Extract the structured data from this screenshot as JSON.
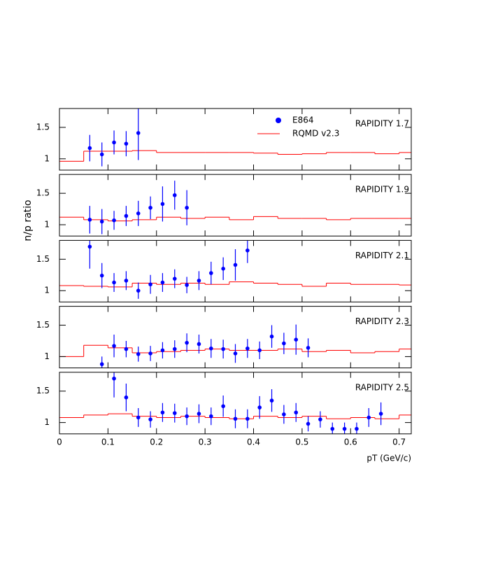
{
  "chart_data": {
    "type": "scatter",
    "xlabel": "pT (GeV/c)",
    "ylabel": "n/p ratio",
    "xlim": [
      0,
      0.725
    ],
    "xticks": [
      0,
      0.1,
      0.2,
      0.3,
      0.4,
      0.5,
      0.6,
      0.7
    ],
    "ylim": [
      0.82,
      1.8
    ],
    "yticks": [
      1,
      1.5
    ],
    "series": [
      {
        "name": "E864",
        "color": "#0000ff"
      },
      {
        "name": "RQMD v2.3",
        "color": "#ff0000"
      }
    ],
    "bins": [
      0,
      0.05,
      0.1,
      0.15,
      0.2,
      0.25,
      0.3,
      0.35,
      0.4,
      0.45,
      0.5,
      0.55,
      0.6,
      0.65,
      0.7,
      0.725
    ],
    "panels": [
      {
        "label": "RAPIDITY 1.7",
        "x": [
          0.0625,
          0.0875,
          0.1125,
          0.1375,
          0.1625
        ],
        "values": [
          1.17,
          1.07,
          1.26,
          1.24,
          1.41
        ],
        "errors": [
          0.21,
          0.19,
          0.19,
          0.2,
          0.43
        ],
        "model": [
          0.96,
          1.12,
          1.12,
          1.13,
          1.1,
          1.1,
          1.1,
          1.1,
          1.09,
          1.07,
          1.08,
          1.1,
          1.1,
          1.08,
          1.1
        ]
      },
      {
        "label": "RAPIDITY 1.9",
        "x": [
          0.0625,
          0.0875,
          0.1125,
          0.1375,
          0.1625,
          0.1875,
          0.2125,
          0.2375,
          0.2625
        ],
        "values": [
          1.08,
          1.05,
          1.07,
          1.14,
          1.18,
          1.27,
          1.33,
          1.47,
          1.27
        ],
        "errors": [
          0.22,
          0.2,
          0.15,
          0.16,
          0.2,
          0.18,
          0.28,
          0.23,
          0.28
        ],
        "model": [
          1.12,
          1.08,
          1.06,
          1.08,
          1.12,
          1.1,
          1.12,
          1.08,
          1.13,
          1.1,
          1.1,
          1.08,
          1.1,
          1.1,
          1.1
        ]
      },
      {
        "label": "RAPIDITY 2.1",
        "x": [
          0.0625,
          0.0875,
          0.1125,
          0.1375,
          0.1625,
          0.1875,
          0.2125,
          0.2375,
          0.2625,
          0.2875,
          0.3125,
          0.3375,
          0.3625,
          0.3875
        ],
        "values": [
          1.7,
          1.24,
          1.13,
          1.16,
          1.0,
          1.1,
          1.13,
          1.19,
          1.09,
          1.16,
          1.28,
          1.35,
          1.41,
          1.64
        ],
        "errors": [
          0.35,
          0.2,
          0.15,
          0.15,
          0.13,
          0.15,
          0.15,
          0.15,
          0.13,
          0.15,
          0.18,
          0.18,
          0.25,
          0.2
        ],
        "model": [
          1.08,
          1.07,
          1.06,
          1.12,
          1.1,
          1.12,
          1.1,
          1.14,
          1.12,
          1.1,
          1.07,
          1.12,
          1.1,
          1.1,
          1.09
        ]
      },
      {
        "label": "RAPIDITY 2.3",
        "x": [
          0.0875,
          0.1125,
          0.1375,
          0.1625,
          0.1875,
          0.2125,
          0.2375,
          0.2625,
          0.2875,
          0.3125,
          0.3375,
          0.3625,
          0.3875,
          0.4125,
          0.4375,
          0.4625,
          0.4875,
          0.5125
        ],
        "values": [
          0.88,
          1.17,
          1.12,
          1.04,
          1.05,
          1.1,
          1.12,
          1.22,
          1.2,
          1.13,
          1.12,
          1.05,
          1.13,
          1.1,
          1.32,
          1.21,
          1.27,
          1.14
        ],
        "errors": [
          0.12,
          0.18,
          0.13,
          0.12,
          0.12,
          0.13,
          0.14,
          0.15,
          0.15,
          0.15,
          0.15,
          0.15,
          0.15,
          0.14,
          0.18,
          0.17,
          0.24,
          0.15
        ],
        "model": [
          1.0,
          1.18,
          1.14,
          1.06,
          1.08,
          1.1,
          1.12,
          1.1,
          1.1,
          1.12,
          1.08,
          1.1,
          1.06,
          1.08,
          1.12
        ]
      },
      {
        "label": "RAPIDITY 2.5",
        "x": [
          0.1125,
          0.1375,
          0.1625,
          0.1875,
          0.2125,
          0.2375,
          0.2625,
          0.2875,
          0.3125,
          0.3375,
          0.3625,
          0.3875,
          0.4125,
          0.4375,
          0.4625,
          0.4875,
          0.5125,
          0.5375,
          0.5625,
          0.5875,
          0.6125,
          0.6375,
          0.6625
        ],
        "values": [
          1.7,
          1.4,
          1.08,
          1.05,
          1.16,
          1.15,
          1.1,
          1.14,
          1.1,
          1.26,
          1.06,
          1.06,
          1.24,
          1.35,
          1.13,
          1.16,
          0.98,
          1.05,
          0.9,
          0.9,
          0.9,
          1.08,
          1.14
        ],
        "errors": [
          0.3,
          0.22,
          0.15,
          0.13,
          0.15,
          0.15,
          0.14,
          0.15,
          0.14,
          0.17,
          0.15,
          0.15,
          0.18,
          0.18,
          0.15,
          0.15,
          0.12,
          0.13,
          0.1,
          0.1,
          0.1,
          0.15,
          0.18
        ],
        "model": [
          1.08,
          1.12,
          1.14,
          1.1,
          1.08,
          1.1,
          1.08,
          1.06,
          1.1,
          1.08,
          1.1,
          1.06,
          1.08,
          1.06,
          1.12
        ]
      }
    ]
  }
}
